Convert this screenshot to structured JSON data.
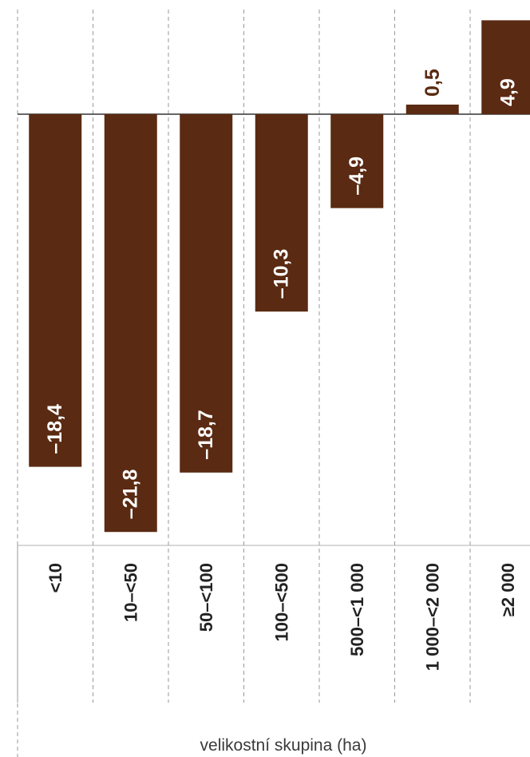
{
  "chart_data": {
    "type": "bar",
    "categories": [
      "<10",
      "10–<50",
      "50–<100",
      "100–<500",
      "500–<1 000",
      "1 000–<2 000",
      "≥2 000"
    ],
    "values": [
      -18.4,
      -21.8,
      -18.7,
      -10.3,
      -4.9,
      0.5,
      4.9
    ],
    "value_labels": [
      "–18,4",
      "–21,8",
      "–18,7",
      "–10,3",
      "–4,9",
      "0,5",
      "4,9"
    ],
    "xlabel": "velikostní skupina (ha)",
    "ylabel": "",
    "ylim": [
      -22.5,
      5.5
    ],
    "grid": true,
    "orientation": "rotated-90",
    "colors": {
      "bar": "#5a2a12",
      "label_inside": "#ffffff",
      "label_outside": "#5a2a12",
      "grid": "#9a9a9a",
      "axis": "#333333"
    }
  }
}
